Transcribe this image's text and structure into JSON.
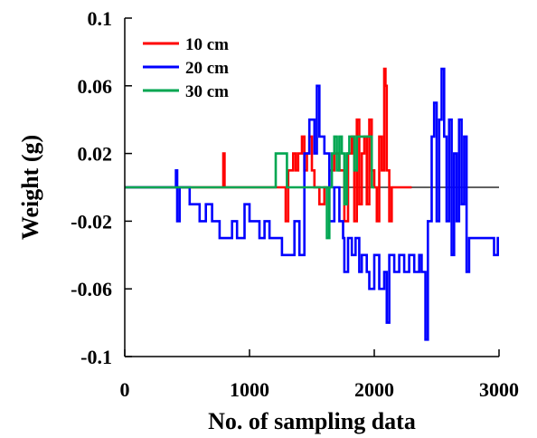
{
  "chart_data": {
    "type": "line",
    "title": "",
    "xlabel": "No. of sampling  data",
    "ylabel": "Weight  (g)",
    "xlim": [
      0,
      3000
    ],
    "ylim": [
      -0.1,
      0.1
    ],
    "x_ticks": [
      0,
      1000,
      2000,
      3000
    ],
    "x_tick_labels": [
      "0",
      "1000",
      "2000",
      "3000"
    ],
    "y_ticks": [
      0.1,
      0.06,
      0.02,
      -0.02,
      -0.06,
      -0.1
    ],
    "y_tick_labels": [
      "0.1",
      "0.06",
      "0.02",
      "-0.02",
      "-0.06",
      "-0.1"
    ],
    "reference_line_y": 0,
    "grid": false,
    "legend_position": "top-left",
    "series": [
      {
        "name": "10 cm",
        "color": "#ff0000",
        "points": [
          [
            0,
            0
          ],
          [
            780,
            0
          ],
          [
            790,
            0.02
          ],
          [
            800,
            0
          ],
          [
            1280,
            0
          ],
          [
            1290,
            -0.02
          ],
          [
            1300,
            -0.02
          ],
          [
            1310,
            0.01
          ],
          [
            1350,
            0.02
          ],
          [
            1370,
            0.01
          ],
          [
            1390,
            0.02
          ],
          [
            1420,
            0.03
          ],
          [
            1440,
            0.01
          ],
          [
            1460,
            0.02
          ],
          [
            1480,
            0.03
          ],
          [
            1500,
            0.01
          ],
          [
            1520,
            0
          ],
          [
            1560,
            -0.01
          ],
          [
            1600,
            0
          ],
          [
            1640,
            0.01
          ],
          [
            1680,
            0.02
          ],
          [
            1720,
            0.01
          ],
          [
            1760,
            -0.02
          ],
          [
            1790,
            0.02
          ],
          [
            1820,
            0.03
          ],
          [
            1840,
            -0.02
          ],
          [
            1860,
            0.04
          ],
          [
            1880,
            -0.01
          ],
          [
            1900,
            0.02
          ],
          [
            1920,
            0.03
          ],
          [
            1940,
            -0.01
          ],
          [
            1960,
            0.04
          ],
          [
            1980,
            0.01
          ],
          [
            2000,
            0
          ],
          [
            2020,
            -0.02
          ],
          [
            2040,
            0.03
          ],
          [
            2060,
            0.01
          ],
          [
            2080,
            0.07
          ],
          [
            2090,
            0.06
          ],
          [
            2100,
            0.01
          ],
          [
            2120,
            -0.02
          ],
          [
            2140,
            0
          ],
          [
            2300,
            0
          ]
        ]
      },
      {
        "name": "20 cm",
        "color": "#0000ff",
        "points": [
          [
            0,
            0
          ],
          [
            400,
            0
          ],
          [
            410,
            0.01
          ],
          [
            420,
            -0.02
          ],
          [
            440,
            0
          ],
          [
            520,
            -0.01
          ],
          [
            560,
            -0.01
          ],
          [
            600,
            -0.02
          ],
          [
            650,
            -0.01
          ],
          [
            700,
            -0.02
          ],
          [
            760,
            -0.03
          ],
          [
            800,
            -0.03
          ],
          [
            860,
            -0.02
          ],
          [
            900,
            -0.03
          ],
          [
            940,
            -0.03
          ],
          [
            960,
            -0.01
          ],
          [
            1000,
            -0.02
          ],
          [
            1040,
            -0.02
          ],
          [
            1080,
            -0.03
          ],
          [
            1120,
            -0.02
          ],
          [
            1160,
            -0.03
          ],
          [
            1220,
            -0.03
          ],
          [
            1260,
            -0.04
          ],
          [
            1320,
            -0.04
          ],
          [
            1360,
            -0.02
          ],
          [
            1400,
            -0.04
          ],
          [
            1440,
            0.02
          ],
          [
            1480,
            0.04
          ],
          [
            1520,
            0.02
          ],
          [
            1540,
            0.06
          ],
          [
            1560,
            0.03
          ],
          [
            1600,
            0.02
          ],
          [
            1640,
            -0.02
          ],
          [
            1680,
            0
          ],
          [
            1720,
            -0.02
          ],
          [
            1750,
            -0.03
          ],
          [
            1760,
            -0.05
          ],
          [
            1790,
            -0.03
          ],
          [
            1820,
            -0.04
          ],
          [
            1850,
            -0.03
          ],
          [
            1880,
            -0.05
          ],
          [
            1900,
            -0.04
          ],
          [
            1940,
            -0.05
          ],
          [
            1960,
            -0.06
          ],
          [
            2000,
            -0.04
          ],
          [
            2040,
            -0.06
          ],
          [
            2080,
            -0.05
          ],
          [
            2100,
            -0.08
          ],
          [
            2120,
            -0.04
          ],
          [
            2160,
            -0.05
          ],
          [
            2200,
            -0.04
          ],
          [
            2240,
            -0.05
          ],
          [
            2280,
            -0.04
          ],
          [
            2320,
            -0.05
          ],
          [
            2360,
            -0.04
          ],
          [
            2380,
            -0.05
          ],
          [
            2410,
            -0.09
          ],
          [
            2430,
            -0.02
          ],
          [
            2460,
            0.03
          ],
          [
            2480,
            0.05
          ],
          [
            2500,
            -0.02
          ],
          [
            2520,
            0.04
          ],
          [
            2540,
            0.07
          ],
          [
            2560,
            0.03
          ],
          [
            2580,
            -0.02
          ],
          [
            2600,
            0.04
          ],
          [
            2620,
            -0.04
          ],
          [
            2640,
            0.02
          ],
          [
            2660,
            -0.02
          ],
          [
            2680,
            0.04
          ],
          [
            2700,
            -0.01
          ],
          [
            2720,
            0.03
          ],
          [
            2740,
            -0.05
          ],
          [
            2760,
            -0.03
          ],
          [
            2800,
            -0.03
          ],
          [
            2860,
            -0.03
          ],
          [
            2900,
            -0.03
          ],
          [
            2960,
            -0.04
          ],
          [
            2990,
            -0.03
          ],
          [
            3000,
            -0.04
          ]
        ]
      },
      {
        "name": "30 cm",
        "color": "#00a651",
        "points": [
          [
            0,
            0
          ],
          [
            1200,
            0
          ],
          [
            1210,
            0.02
          ],
          [
            1260,
            0.02
          ],
          [
            1300,
            0
          ],
          [
            1600,
            0
          ],
          [
            1620,
            -0.03
          ],
          [
            1640,
            0
          ],
          [
            1660,
            0.02
          ],
          [
            1680,
            0.03
          ],
          [
            1700,
            0.01
          ],
          [
            1720,
            0.03
          ],
          [
            1740,
            0.02
          ],
          [
            1760,
            -0.01
          ],
          [
            1780,
            0.02
          ],
          [
            1800,
            0.03
          ],
          [
            1840,
            0.01
          ],
          [
            1860,
            0.03
          ],
          [
            1900,
            0.03
          ],
          [
            1960,
            0.03
          ],
          [
            1980,
            0
          ],
          [
            2000,
            0
          ]
        ]
      }
    ]
  }
}
